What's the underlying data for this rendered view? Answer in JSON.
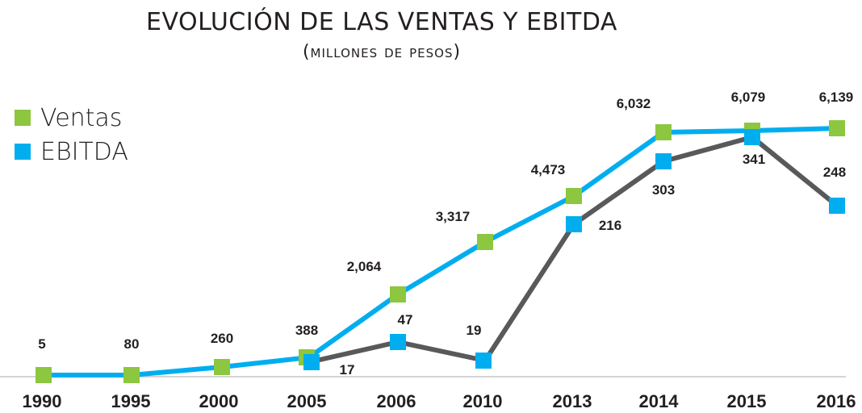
{
  "chart_data": {
    "type": "line",
    "title": "EVOLUCIÓN DE LAS VENTAS Y EBITDA",
    "subtitle": "(millones de pesos)",
    "xlabel": "",
    "ylabel": "",
    "categories": [
      "1990",
      "1995",
      "2000",
      "2005",
      "2006",
      "2010",
      "2013",
      "2014",
      "2015",
      "2016"
    ],
    "series": [
      {
        "name": "Ventas",
        "marker_color": "#8dc63f",
        "line_color": "#00aeef",
        "values": [
          5,
          80,
          260,
          388,
          2064,
          3317,
          4473,
          6032,
          6079,
          6139
        ],
        "labels": [
          "5",
          "80",
          "260",
          "388",
          "2,064",
          "3,317",
          "4,473",
          "6,032",
          "6,079",
          "6,139"
        ]
      },
      {
        "name": "EBITDA",
        "marker_color": "#00aeef",
        "line_color": "#58595b",
        "values": [
          null,
          null,
          null,
          17,
          47,
          19,
          216,
          303,
          341,
          248
        ],
        "labels": [
          "",
          "",
          "",
          "17",
          "47",
          "19",
          "216",
          "303",
          "341",
          "248"
        ]
      }
    ],
    "grid": false,
    "legend_position": "top-left",
    "axis_color": "#d1d3d4"
  },
  "legend": {
    "items": [
      {
        "label": "Ventas",
        "color": "#8dc63f"
      },
      {
        "label": "EBITDA",
        "color": "#00aeef"
      }
    ]
  }
}
